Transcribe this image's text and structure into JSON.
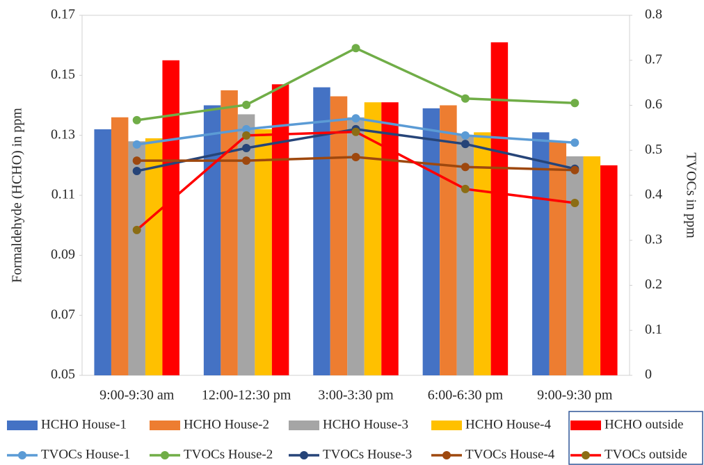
{
  "chart_data": {
    "type": "bar_line",
    "categories": [
      "9:00-9:30 am",
      "12:00-12:30 pm",
      "3:00-3:30 pm",
      "6:00-6:30 pm",
      "9:00-9:30 pm"
    ],
    "y_label": "Formaldehyde (HCHO) in ppm",
    "y2_label": "TVOCs in ppm",
    "ylim": [
      0.05,
      0.17
    ],
    "yticks": [
      0.05,
      0.07,
      0.09,
      0.11,
      0.13,
      0.15,
      0.17
    ],
    "y2lim": [
      0,
      0.8
    ],
    "y2ticks": [
      0,
      0.1,
      0.2,
      0.3,
      0.4,
      0.5,
      0.6,
      0.7,
      0.8
    ],
    "series": [
      {
        "name": "HCHO House-1",
        "type": "bar",
        "color": "#4472c4",
        "values": [
          0.132,
          0.14,
          0.146,
          0.139,
          0.131
        ]
      },
      {
        "name": "HCHO House-2",
        "type": "bar",
        "color": "#ed7d31",
        "values": [
          0.136,
          0.145,
          0.143,
          0.14,
          0.128
        ]
      },
      {
        "name": "HCHO House-3",
        "type": "bar",
        "color": "#a5a5a5",
        "values": [
          0.128,
          0.137,
          0.136,
          0.13,
          0.123
        ]
      },
      {
        "name": "HCHO House-4",
        "type": "bar",
        "color": "#ffc000",
        "values": [
          0.129,
          0.132,
          0.141,
          0.131,
          0.123
        ]
      },
      {
        "name": "HCHO outside",
        "type": "bar",
        "color": "#ff0000",
        "values": [
          0.155,
          0.147,
          0.141,
          0.161,
          0.12
        ]
      },
      {
        "name": "TVOCs House-1",
        "type": "line",
        "axis": "y2",
        "color": "#5b9bd5",
        "marker_color": "#5b9bd5",
        "values": [
          0.513,
          0.547,
          0.571,
          0.533,
          0.517
        ]
      },
      {
        "name": "TVOCs House-2",
        "type": "line",
        "axis": "y2",
        "color": "#70ad47",
        "marker_color": "#70ad47",
        "values": [
          0.567,
          0.601,
          0.727,
          0.615,
          0.605
        ]
      },
      {
        "name": "TVOCs House-3",
        "type": "line",
        "axis": "y2",
        "color": "#264478",
        "marker_color": "#264478",
        "values": [
          0.454,
          0.505,
          0.547,
          0.514,
          0.459
        ]
      },
      {
        "name": "TVOCs House-4",
        "type": "line",
        "axis": "y2",
        "color": "#9e480e",
        "marker_color": "#9e480e",
        "values": [
          0.477,
          0.477,
          0.485,
          0.463,
          0.456
        ]
      },
      {
        "name": "TVOCs outside",
        "type": "line",
        "axis": "y2",
        "color": "#ff0000",
        "marker_color": "#8b6d14",
        "values": [
          0.323,
          0.533,
          0.541,
          0.414,
          0.383
        ]
      }
    ]
  }
}
